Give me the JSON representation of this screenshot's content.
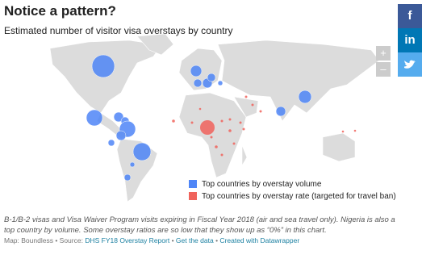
{
  "header": {
    "title": "Notice a pattern?",
    "subtitle": "Estimated number of visitor visa overstays by country"
  },
  "legend": [
    {
      "label": "Top countries by overstay volume",
      "color": "#4f86f7"
    },
    {
      "label": "Top countries by overstay rate (targeted for travel ban)",
      "color": "#f0635c"
    }
  ],
  "notes": "B-1/B-2 visas and Visa Waiver Program visits expiring in Fiscal Year 2018 (air and sea travel only). Nigeria is also a top country by volume. Some overstay ratios are so low that they show up as “0%” in this chart.",
  "source": {
    "map": "Map: Boundless",
    "source_label": "Source:",
    "links": [
      "DHS FY18 Overstay Report",
      "Get the data",
      "Created with Datawrapper"
    ]
  },
  "zoom": [
    "+",
    "–"
  ],
  "social": [
    "f",
    "in"
  ]
}
